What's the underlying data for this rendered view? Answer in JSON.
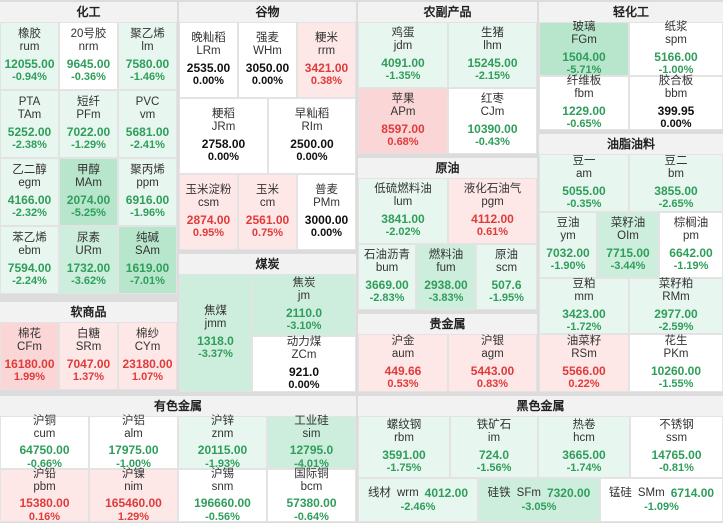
{
  "colors": {
    "up": "#e03b3b",
    "down": "#2f9e5b",
    "flat": "#111111"
  },
  "sections": {
    "chemical": "化工",
    "grain": "谷物",
    "agri": "农副产品",
    "light": "轻化工",
    "oil": "原油",
    "oils_fats": "油脂油料",
    "coal": "煤炭",
    "softs": "软商品",
    "precious": "贵金属",
    "nonferrous": "有色金属",
    "ferrous": "黑色金属"
  },
  "tiles": {
    "rum": {
      "name": "橡胶",
      "code": "rum",
      "price": "12055.00",
      "pct": "-0.94%"
    },
    "nrm": {
      "name": "20号胶",
      "code": "nrm",
      "price": "9645.00",
      "pct": "-0.36%"
    },
    "lm": {
      "name": "聚乙烯",
      "code": "lm",
      "price": "7580.00",
      "pct": "-1.46%"
    },
    "tam": {
      "name": "PTA",
      "code": "TAm",
      "price": "5252.00",
      "pct": "-2.38%"
    },
    "pfm": {
      "name": "短纤",
      "code": "PFm",
      "price": "7022.00",
      "pct": "-1.29%"
    },
    "vm": {
      "name": "PVC",
      "code": "vm",
      "price": "5681.00",
      "pct": "-2.41%"
    },
    "egm": {
      "name": "乙二醇",
      "code": "egm",
      "price": "4166.00",
      "pct": "-2.32%"
    },
    "mam": {
      "name": "甲醇",
      "code": "MAm",
      "price": "2074.00",
      "pct": "-5.25%"
    },
    "ppm": {
      "name": "聚丙烯",
      "code": "ppm",
      "price": "6916.00",
      "pct": "-1.96%"
    },
    "ebm": {
      "name": "苯乙烯",
      "code": "ebm",
      "price": "7594.00",
      "pct": "-2.24%"
    },
    "urm": {
      "name": "尿素",
      "code": "URm",
      "price": "1732.00",
      "pct": "-3.62%"
    },
    "sam": {
      "name": "纯碱",
      "code": "SAm",
      "price": "1619.00",
      "pct": "-7.01%"
    },
    "lrm": {
      "name": "晚籼稻",
      "code": "LRm",
      "price": "2535.00",
      "pct": "0.00%"
    },
    "whm": {
      "name": "强麦",
      "code": "WHm",
      "price": "3050.00",
      "pct": "0.00%"
    },
    "rrm": {
      "name": "粳米",
      "code": "rrm",
      "price": "3421.00",
      "pct": "0.38%"
    },
    "jrm": {
      "name": "粳稻",
      "code": "JRm",
      "price": "2758.00",
      "pct": "0.00%"
    },
    "rim": {
      "name": "早籼稻",
      "code": "RIm",
      "price": "2500.00",
      "pct": "0.00%"
    },
    "csm": {
      "name": "玉米淀粉",
      "code": "csm",
      "price": "2874.00",
      "pct": "0.95%"
    },
    "cm": {
      "name": "玉米",
      "code": "cm",
      "price": "2561.00",
      "pct": "0.75%"
    },
    "pmm": {
      "name": "普麦",
      "code": "PMm",
      "price": "3000.00",
      "pct": "0.00%"
    },
    "jdm": {
      "name": "鸡蛋",
      "code": "jdm",
      "price": "4091.00",
      "pct": "-1.35%"
    },
    "lhm": {
      "name": "生猪",
      "code": "lhm",
      "price": "15245.00",
      "pct": "-2.15%"
    },
    "apm": {
      "name": "苹果",
      "code": "APm",
      "price": "8597.00",
      "pct": "0.68%"
    },
    "cjm": {
      "name": "红枣",
      "code": "CJm",
      "price": "10390.00",
      "pct": "-0.43%"
    },
    "fgm": {
      "name": "玻璃",
      "code": "FGm",
      "price": "1504.00",
      "pct": "-5.71%"
    },
    "spm": {
      "name": "纸浆",
      "code": "spm",
      "price": "5166.00",
      "pct": "-1.00%"
    },
    "fbm": {
      "name": "纤维板",
      "code": "fbm",
      "price": "1229.00",
      "pct": "-0.65%"
    },
    "bbm": {
      "name": "胶合板",
      "code": "bbm",
      "price": "399.95",
      "pct": "0.00%"
    },
    "lum": {
      "name": "低硫燃料油",
      "code": "lum",
      "price": "3841.00",
      "pct": "-2.02%"
    },
    "pgm": {
      "name": "液化石油气",
      "code": "pgm",
      "price": "4112.00",
      "pct": "0.61%"
    },
    "bum": {
      "name": "石油沥青",
      "code": "bum",
      "price": "3669.00",
      "pct": "-2.83%"
    },
    "fum": {
      "name": "燃料油",
      "code": "fum",
      "price": "2938.00",
      "pct": "-3.83%"
    },
    "scm": {
      "name": "原油",
      "code": "scm",
      "price": "507.6",
      "pct": "-1.95%"
    },
    "am": {
      "name": "豆一",
      "code": "am",
      "price": "5055.00",
      "pct": "-0.35%"
    },
    "bm": {
      "name": "豆二",
      "code": "bm",
      "price": "3855.00",
      "pct": "-2.65%"
    },
    "ym": {
      "name": "豆油",
      "code": "ym",
      "price": "7032.00",
      "pct": "-1.90%"
    },
    "olm": {
      "name": "菜籽油",
      "code": "OIm",
      "price": "7715.00",
      "pct": "-3.44%"
    },
    "pm": {
      "name": "棕榈油",
      "code": "pm",
      "price": "6642.00",
      "pct": "-1.19%"
    },
    "mm": {
      "name": "豆粕",
      "code": "mm",
      "price": "3423.00",
      "pct": "-1.72%"
    },
    "rmm": {
      "name": "菜籽粕",
      "code": "RMm",
      "price": "2977.00",
      "pct": "-2.59%"
    },
    "rsm": {
      "name": "油菜籽",
      "code": "RSm",
      "price": "5566.00",
      "pct": "0.22%"
    },
    "pkm": {
      "name": "花生",
      "code": "PKm",
      "price": "10260.00",
      "pct": "-1.55%"
    },
    "jmm": {
      "name": "焦煤",
      "code": "jmm",
      "price": "1318.0",
      "pct": "-3.37%"
    },
    "jm": {
      "name": "焦炭",
      "code": "jm",
      "price": "2110.0",
      "pct": "-3.10%"
    },
    "zcm": {
      "name": "动力煤",
      "code": "ZCm",
      "price": "921.0",
      "pct": "0.00%"
    },
    "cfm": {
      "name": "棉花",
      "code": "CFm",
      "price": "16180.00",
      "pct": "1.99%"
    },
    "srm": {
      "name": "白糖",
      "code": "SRm",
      "price": "7047.00",
      "pct": "1.37%"
    },
    "cym": {
      "name": "棉纱",
      "code": "CYm",
      "price": "23180.00",
      "pct": "1.07%"
    },
    "aum": {
      "name": "沪金",
      "code": "aum",
      "price": "449.66",
      "pct": "0.53%"
    },
    "agm": {
      "name": "沪银",
      "code": "agm",
      "price": "5443.00",
      "pct": "0.83%"
    },
    "cum": {
      "name": "沪铜",
      "code": "cum",
      "price": "64750.00",
      "pct": "-0.66%"
    },
    "alm": {
      "name": "沪铝",
      "code": "alm",
      "price": "17975.00",
      "pct": "-1.00%"
    },
    "znm": {
      "name": "沪锌",
      "code": "znm",
      "price": "20115.00",
      "pct": "-1.93%"
    },
    "sim": {
      "name": "工业硅",
      "code": "sim",
      "price": "12795.0",
      "pct": "-4.01%"
    },
    "pbm": {
      "name": "沪铅",
      "code": "pbm",
      "price": "15380.00",
      "pct": "0.16%"
    },
    "nim": {
      "name": "沪镍",
      "code": "nim",
      "price": "165460.00",
      "pct": "1.29%"
    },
    "snm": {
      "name": "沪锡",
      "code": "snm",
      "price": "196660.00",
      "pct": "-0.56%"
    },
    "bcm": {
      "name": "国际铜",
      "code": "bcm",
      "price": "57380.00",
      "pct": "-0.64%"
    },
    "rbm": {
      "name": "螺纹钢",
      "code": "rbm",
      "price": "3591.00",
      "pct": "-1.75%"
    },
    "im": {
      "name": "铁矿石",
      "code": "im",
      "price": "724.0",
      "pct": "-1.56%"
    },
    "hcm": {
      "name": "热卷",
      "code": "hcm",
      "price": "3665.00",
      "pct": "-1.74%"
    },
    "ssm": {
      "name": "不锈钢",
      "code": "ssm",
      "price": "14765.00",
      "pct": "-0.81%"
    },
    "wrm": {
      "name": "线材",
      "code": "wrm",
      "price": "4012.00",
      "pct": "-2.46%"
    },
    "sfm": {
      "name": "硅铁",
      "code": "SFm",
      "price": "7320.00",
      "pct": "-3.05%"
    },
    "smm": {
      "name": "锰硅",
      "code": "SMm",
      "price": "6714.00",
      "pct": "-1.09%"
    }
  }
}
